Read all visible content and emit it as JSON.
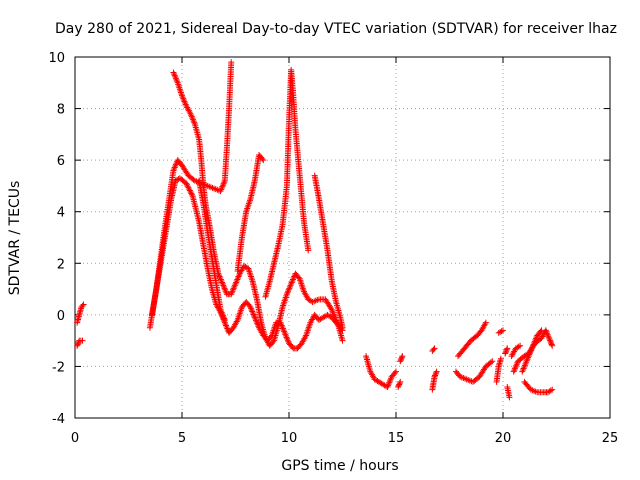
{
  "chart_data": {
    "type": "scatter",
    "title": "Day 280 of 2021, Sidereal Day-to-day VTEC variation (SDTVAR) for receiver lhaz",
    "xlabel": "GPS time / hours",
    "ylabel": "SDTVAR / TECUs",
    "xlim": [
      0,
      25
    ],
    "ylim": [
      -4,
      10
    ],
    "xticks": [
      "0",
      "5",
      "10",
      "15",
      "20",
      "25"
    ],
    "yticks": [
      "-4",
      "-2",
      "0",
      "2",
      "4",
      "6",
      "8",
      "10"
    ],
    "grid": true,
    "marker": "+",
    "series": [
      {
        "name": "SDTVAR",
        "color": "#ff0000",
        "tracks": [
          [
            [
              0.1,
              -1.2
            ],
            [
              0.2,
              -1.0
            ],
            [
              0.35,
              -1.0
            ]
          ],
          [
            [
              0.1,
              -0.3
            ],
            [
              0.2,
              0.0
            ],
            [
              0.3,
              0.3
            ],
            [
              0.4,
              0.4
            ]
          ],
          [
            [
              3.5,
              -0.5
            ],
            [
              3.7,
              0.5
            ],
            [
              3.9,
              1.5
            ],
            [
              4.1,
              2.5
            ],
            [
              4.3,
              3.5
            ],
            [
              4.5,
              4.5
            ],
            [
              4.7,
              5.2
            ],
            [
              4.9,
              5.3
            ],
            [
              5.2,
              5.1
            ],
            [
              5.5,
              4.6
            ],
            [
              5.8,
              3.6
            ],
            [
              6.0,
              2.7
            ],
            [
              6.2,
              1.8
            ],
            [
              6.4,
              1.0
            ],
            [
              6.6,
              0.4
            ],
            [
              6.8,
              0.1
            ],
            [
              7.0,
              -0.3
            ],
            [
              7.2,
              -0.7
            ],
            [
              7.4,
              -0.5
            ],
            [
              7.6,
              -0.2
            ],
            [
              7.8,
              0.3
            ],
            [
              8.0,
              0.5
            ],
            [
              8.2,
              0.3
            ],
            [
              8.4,
              -0.1
            ],
            [
              8.6,
              -0.5
            ],
            [
              8.8,
              -0.8
            ],
            [
              9.0,
              -1.0
            ],
            [
              9.2,
              -0.8
            ],
            [
              9.4,
              -0.3
            ],
            [
              9.6,
              -0.3
            ],
            [
              9.8,
              -0.7
            ],
            [
              10.0,
              -1.1
            ],
            [
              10.2,
              -1.3
            ],
            [
              10.4,
              -1.3
            ],
            [
              10.6,
              -1.1
            ],
            [
              10.8,
              -0.8
            ],
            [
              11.0,
              -0.3
            ],
            [
              11.2,
              0.0
            ],
            [
              11.4,
              -0.2
            ],
            [
              11.6,
              -0.1
            ],
            [
              11.8,
              0.0
            ],
            [
              12.0,
              -0.1
            ],
            [
              12.2,
              -0.3
            ],
            [
              12.4,
              -0.5
            ],
            [
              12.5,
              -0.6
            ]
          ],
          [
            [
              3.6,
              0.0
            ],
            [
              3.8,
              1.0
            ],
            [
              4.0,
              2.2
            ],
            [
              4.2,
              3.4
            ],
            [
              4.4,
              4.5
            ],
            [
              4.6,
              5.6
            ],
            [
              4.8,
              6.0
            ],
            [
              5.0,
              5.8
            ],
            [
              5.3,
              5.4
            ],
            [
              5.6,
              5.2
            ],
            [
              5.9,
              5.1
            ],
            [
              6.2,
              5.0
            ],
            [
              6.5,
              4.9
            ],
            [
              6.8,
              4.8
            ],
            [
              7.0,
              5.2
            ],
            [
              7.1,
              6.5
            ],
            [
              7.2,
              8.0
            ],
            [
              7.3,
              9.8
            ]
          ],
          [
            [
              4.6,
              9.4
            ],
            [
              4.8,
              9.0
            ],
            [
              5.0,
              8.5
            ],
            [
              5.2,
              8.1
            ],
            [
              5.4,
              7.8
            ],
            [
              5.6,
              7.4
            ],
            [
              5.8,
              6.8
            ],
            [
              5.9,
              6.0
            ],
            [
              6.0,
              5.0
            ],
            [
              6.1,
              4.3
            ],
            [
              6.3,
              3.4
            ],
            [
              6.5,
              2.4
            ],
            [
              6.7,
              1.6
            ],
            [
              6.9,
              1.2
            ],
            [
              7.1,
              0.8
            ],
            [
              7.3,
              0.8
            ],
            [
              7.5,
              1.2
            ],
            [
              7.7,
              1.6
            ],
            [
              7.9,
              1.9
            ],
            [
              8.1,
              1.8
            ],
            [
              8.3,
              1.3
            ],
            [
              8.5,
              0.6
            ],
            [
              8.7,
              -0.3
            ],
            [
              8.9,
              -0.9
            ],
            [
              9.1,
              -1.2
            ],
            [
              9.3,
              -1.0
            ],
            [
              9.5,
              -0.4
            ],
            [
              9.7,
              0.3
            ],
            [
              9.9,
              0.8
            ],
            [
              10.1,
              1.2
            ],
            [
              10.3,
              1.6
            ],
            [
              10.5,
              1.4
            ],
            [
              10.7,
              0.9
            ],
            [
              10.9,
              0.6
            ],
            [
              11.1,
              0.5
            ],
            [
              11.4,
              0.6
            ],
            [
              11.7,
              0.6
            ],
            [
              12.0,
              0.2
            ],
            [
              12.3,
              -0.4
            ],
            [
              12.5,
              -1.0
            ]
          ],
          [
            [
              5.8,
              5.2
            ],
            [
              6.0,
              4.3
            ],
            [
              6.2,
              3.2
            ],
            [
              6.4,
              2.2
            ],
            [
              6.6,
              1.2
            ],
            [
              6.8,
              0.2
            ],
            [
              7.0,
              -0.2
            ]
          ],
          [
            [
              7.6,
              1.7
            ],
            [
              7.8,
              3.0
            ],
            [
              8.0,
              4.0
            ],
            [
              8.2,
              4.5
            ],
            [
              8.4,
              5.2
            ],
            [
              8.6,
              6.2
            ],
            [
              8.8,
              6.0
            ]
          ],
          [
            [
              8.9,
              0.7
            ],
            [
              9.1,
              1.3
            ],
            [
              9.3,
              2.0
            ],
            [
              9.5,
              2.7
            ],
            [
              9.7,
              3.5
            ],
            [
              9.9,
              5.0
            ],
            [
              10.0,
              7.5
            ],
            [
              10.1,
              9.5
            ],
            [
              10.2,
              8.5
            ],
            [
              10.3,
              7.2
            ],
            [
              10.5,
              5.4
            ],
            [
              10.7,
              3.6
            ],
            [
              10.9,
              2.5
            ]
          ],
          [
            [
              11.2,
              5.4
            ],
            [
              11.4,
              4.5
            ],
            [
              11.6,
              3.5
            ],
            [
              11.8,
              2.5
            ],
            [
              12.0,
              1.3
            ],
            [
              12.2,
              0.5
            ],
            [
              12.4,
              -0.1
            ],
            [
              12.5,
              -0.5
            ]
          ],
          [
            [
              13.6,
              -1.6
            ],
            [
              13.8,
              -2.2
            ],
            [
              14.0,
              -2.5
            ],
            [
              14.2,
              -2.6
            ],
            [
              14.4,
              -2.7
            ],
            [
              14.6,
              -2.8
            ],
            [
              14.8,
              -2.4
            ],
            [
              15.0,
              -2.2
            ]
          ],
          [
            [
              15.1,
              -2.8
            ],
            [
              15.2,
              -2.6
            ]
          ],
          [
            [
              15.2,
              -1.8
            ],
            [
              15.3,
              -1.6
            ]
          ],
          [
            [
              16.7,
              -2.9
            ],
            [
              16.8,
              -2.4
            ],
            [
              16.9,
              -2.2
            ]
          ],
          [
            [
              16.7,
              -1.4
            ],
            [
              16.8,
              -1.3
            ]
          ],
          [
            [
              17.8,
              -2.2
            ],
            [
              18.0,
              -2.4
            ],
            [
              18.3,
              -2.5
            ],
            [
              18.6,
              -2.6
            ],
            [
              18.9,
              -2.4
            ],
            [
              19.2,
              -2.0
            ],
            [
              19.5,
              -1.8
            ]
          ],
          [
            [
              17.9,
              -1.6
            ],
            [
              18.2,
              -1.3
            ],
            [
              18.5,
              -1.0
            ],
            [
              18.8,
              -0.8
            ],
            [
              19.0,
              -0.6
            ],
            [
              19.2,
              -0.3
            ]
          ],
          [
            [
              19.7,
              -2.6
            ],
            [
              19.8,
              -2.0
            ],
            [
              19.9,
              -1.7
            ]
          ],
          [
            [
              19.8,
              -0.7
            ],
            [
              20.0,
              -0.6
            ]
          ],
          [
            [
              20.1,
              -1.5
            ],
            [
              20.2,
              -1.3
            ]
          ],
          [
            [
              20.2,
              -2.8
            ],
            [
              20.3,
              -3.2
            ]
          ],
          [
            [
              20.5,
              -2.2
            ],
            [
              20.7,
              -1.8
            ],
            [
              21.0,
              -1.6
            ],
            [
              21.2,
              -1.5
            ],
            [
              21.5,
              -1.1
            ],
            [
              21.8,
              -0.9
            ],
            [
              22.0,
              -0.6
            ],
            [
              22.2,
              -1.0
            ],
            [
              22.3,
              -1.2
            ]
          ],
          [
            [
              20.4,
              -1.6
            ],
            [
              20.6,
              -1.3
            ],
            [
              20.8,
              -1.2
            ]
          ],
          [
            [
              21.0,
              -2.6
            ],
            [
              21.3,
              -2.9
            ],
            [
              21.6,
              -3.0
            ],
            [
              21.9,
              -3.0
            ],
            [
              22.1,
              -3.0
            ],
            [
              22.3,
              -2.9
            ]
          ],
          [
            [
              20.9,
              -2.2
            ],
            [
              21.2,
              -1.6
            ],
            [
              21.4,
              -1.2
            ],
            [
              21.6,
              -0.8
            ],
            [
              21.8,
              -0.6
            ]
          ]
        ]
      }
    ]
  }
}
